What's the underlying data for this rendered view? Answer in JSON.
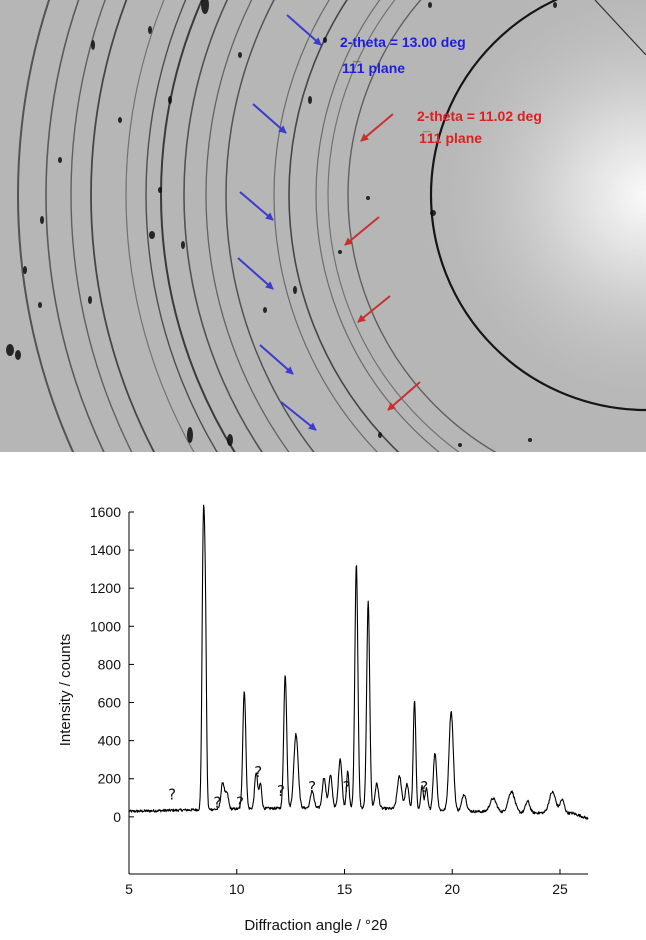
{
  "diffraction_image": {
    "annotation_blue": {
      "label": "2-theta = 13.00 deg",
      "plane": "11̅1 plane",
      "color": "#1f1fd8"
    },
    "annotation_red": {
      "label": "2-theta = 11.02 deg",
      "plane": "1̅11 plane",
      "color": "#d82222"
    }
  },
  "chart_data": {
    "type": "line",
    "xlabel": "Diffraction angle / °2θ",
    "ylabel": "Intensity / counts",
    "xlim": [
      5,
      26.3
    ],
    "ylim": [
      -300,
      1600
    ],
    "xticks": [
      5,
      10,
      15,
      20,
      25
    ],
    "yticks": [
      0,
      200,
      400,
      600,
      800,
      1000,
      1200,
      1400,
      1600
    ],
    "grid": false,
    "series_color": "#000000",
    "peaks": [
      [
        8.45,
        1450,
        0.06
      ],
      [
        8.55,
        820,
        0.05
      ],
      [
        9.35,
        140,
        0.08
      ],
      [
        9.55,
        80,
        0.07
      ],
      [
        10.35,
        620,
        0.07
      ],
      [
        10.9,
        190,
        0.07
      ],
      [
        11.1,
        130,
        0.06
      ],
      [
        12.25,
        700,
        0.07
      ],
      [
        12.75,
        390,
        0.1
      ],
      [
        13.5,
        90,
        0.08
      ],
      [
        14.05,
        160,
        0.08
      ],
      [
        14.35,
        170,
        0.08
      ],
      [
        14.8,
        260,
        0.08
      ],
      [
        15.15,
        190,
        0.06
      ],
      [
        15.55,
        1280,
        0.07
      ],
      [
        16.1,
        1080,
        0.07
      ],
      [
        16.5,
        130,
        0.08
      ],
      [
        17.55,
        170,
        0.1
      ],
      [
        17.9,
        130,
        0.08
      ],
      [
        18.25,
        570,
        0.06
      ],
      [
        18.6,
        120,
        0.06
      ],
      [
        18.8,
        110,
        0.06
      ],
      [
        19.2,
        300,
        0.08
      ],
      [
        19.95,
        520,
        0.1
      ],
      [
        20.55,
        90,
        0.1
      ],
      [
        21.9,
        70,
        0.15
      ],
      [
        22.75,
        110,
        0.15
      ],
      [
        23.5,
        60,
        0.1
      ],
      [
        24.65,
        110,
        0.15
      ],
      [
        25.1,
        70,
        0.1
      ]
    ],
    "annotations": [
      {
        "text": "?",
        "x": 7.0,
        "y": 90
      },
      {
        "text": "?",
        "x": 9.1,
        "y": 50
      },
      {
        "text": "?",
        "x": 10.15,
        "y": 50
      },
      {
        "text": "?",
        "x": 11.0,
        "y": 210
      },
      {
        "text": "?",
        "x": 12.05,
        "y": 110
      },
      {
        "text": "?",
        "x": 13.5,
        "y": 130
      },
      {
        "text": "?",
        "x": 15.1,
        "y": 130
      },
      {
        "text": "?",
        "x": 18.7,
        "y": 130
      }
    ]
  }
}
